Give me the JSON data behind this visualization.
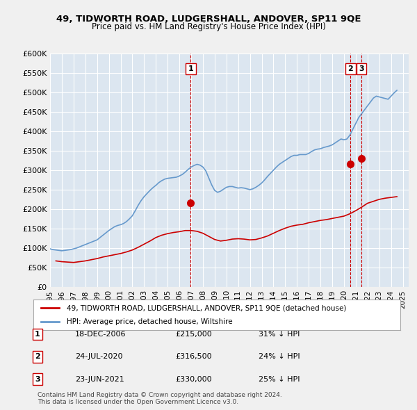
{
  "title": "49, TIDWORTH ROAD, LUDGERSHALL, ANDOVER, SP11 9QE",
  "subtitle": "Price paid vs. HM Land Registry's House Price Index (HPI)",
  "ylabel_ticks": [
    "£0",
    "£50K",
    "£100K",
    "£150K",
    "£200K",
    "£250K",
    "£300K",
    "£350K",
    "£400K",
    "£450K",
    "£500K",
    "£550K",
    "£600K"
  ],
  "ytick_values": [
    0,
    50000,
    100000,
    150000,
    200000,
    250000,
    300000,
    350000,
    400000,
    450000,
    500000,
    550000,
    600000
  ],
  "xlim_start": 1995.0,
  "xlim_end": 2025.5,
  "ylim_min": 0,
  "ylim_max": 600000,
  "hpi_color": "#6699cc",
  "price_color": "#cc0000",
  "vline_color": "#cc0000",
  "background_color": "#e8eef5",
  "plot_bg_color": "#dce6f0",
  "legend_label_red": "49, TIDWORTH ROAD, LUDGERSHALL, ANDOVER, SP11 9QE (detached house)",
  "legend_label_blue": "HPI: Average price, detached house, Wiltshire",
  "transactions": [
    {
      "num": 1,
      "date": "18-DEC-2006",
      "price": 215000,
      "year": 2006.96,
      "pct": "31% ↓ HPI"
    },
    {
      "num": 2,
      "date": "24-JUL-2020",
      "price": 316500,
      "year": 2020.56,
      "pct": "24% ↓ HPI"
    },
    {
      "num": 3,
      "date": "23-JUN-2021",
      "price": 330000,
      "year": 2021.47,
      "pct": "25% ↓ HPI"
    }
  ],
  "footer": "Contains HM Land Registry data © Crown copyright and database right 2024.\nThis data is licensed under the Open Government Licence v3.0.",
  "hpi_data_x": [
    1995.0,
    1995.25,
    1995.5,
    1995.75,
    1996.0,
    1996.25,
    1996.5,
    1996.75,
    1997.0,
    1997.25,
    1997.5,
    1997.75,
    1998.0,
    1998.25,
    1998.5,
    1998.75,
    1999.0,
    1999.25,
    1999.5,
    1999.75,
    2000.0,
    2000.25,
    2000.5,
    2000.75,
    2001.0,
    2001.25,
    2001.5,
    2001.75,
    2002.0,
    2002.25,
    2002.5,
    2002.75,
    2003.0,
    2003.25,
    2003.5,
    2003.75,
    2004.0,
    2004.25,
    2004.5,
    2004.75,
    2005.0,
    2005.25,
    2005.5,
    2005.75,
    2006.0,
    2006.25,
    2006.5,
    2006.75,
    2007.0,
    2007.25,
    2007.5,
    2007.75,
    2008.0,
    2008.25,
    2008.5,
    2008.75,
    2009.0,
    2009.25,
    2009.5,
    2009.75,
    2010.0,
    2010.25,
    2010.5,
    2010.75,
    2011.0,
    2011.25,
    2011.5,
    2011.75,
    2012.0,
    2012.25,
    2012.5,
    2012.75,
    2013.0,
    2013.25,
    2013.5,
    2013.75,
    2014.0,
    2014.25,
    2014.5,
    2014.75,
    2015.0,
    2015.25,
    2015.5,
    2015.75,
    2016.0,
    2016.25,
    2016.5,
    2016.75,
    2017.0,
    2017.25,
    2017.5,
    2017.75,
    2018.0,
    2018.25,
    2018.5,
    2018.75,
    2019.0,
    2019.25,
    2019.5,
    2019.75,
    2020.0,
    2020.25,
    2020.5,
    2020.75,
    2021.0,
    2021.25,
    2021.5,
    2021.75,
    2022.0,
    2022.25,
    2022.5,
    2022.75,
    2023.0,
    2023.25,
    2023.5,
    2023.75,
    2024.0,
    2024.25,
    2024.5
  ],
  "hpi_data_y": [
    98000,
    96000,
    95000,
    94000,
    93000,
    94000,
    95000,
    96000,
    98000,
    100000,
    103000,
    106000,
    109000,
    112000,
    115000,
    118000,
    121000,
    127000,
    133000,
    139000,
    145000,
    150000,
    155000,
    158000,
    160000,
    163000,
    168000,
    175000,
    183000,
    196000,
    210000,
    222000,
    232000,
    240000,
    248000,
    255000,
    261000,
    268000,
    273000,
    277000,
    279000,
    280000,
    281000,
    282000,
    285000,
    289000,
    295000,
    302000,
    308000,
    312000,
    315000,
    313000,
    308000,
    298000,
    280000,
    262000,
    248000,
    243000,
    246000,
    251000,
    256000,
    258000,
    258000,
    256000,
    254000,
    255000,
    254000,
    252000,
    250000,
    252000,
    256000,
    261000,
    267000,
    275000,
    284000,
    292000,
    300000,
    308000,
    315000,
    320000,
    325000,
    330000,
    335000,
    338000,
    338000,
    340000,
    340000,
    340000,
    343000,
    348000,
    352000,
    354000,
    355000,
    358000,
    360000,
    362000,
    365000,
    370000,
    375000,
    380000,
    378000,
    380000,
    390000,
    405000,
    420000,
    435000,
    445000,
    455000,
    465000,
    475000,
    485000,
    490000,
    488000,
    486000,
    484000,
    482000,
    490000,
    498000,
    505000
  ],
  "price_data_x": [
    1995.5,
    1996.0,
    1996.5,
    1997.0,
    1997.5,
    1998.0,
    1998.5,
    1999.0,
    1999.5,
    2000.0,
    2000.5,
    2001.0,
    2001.5,
    2002.0,
    2002.5,
    2003.0,
    2003.5,
    2004.0,
    2004.5,
    2005.0,
    2005.5,
    2006.0,
    2006.5,
    2007.0,
    2007.5,
    2008.0,
    2008.5,
    2009.0,
    2009.5,
    2010.0,
    2010.5,
    2011.0,
    2011.5,
    2012.0,
    2012.5,
    2013.0,
    2013.5,
    2014.0,
    2014.5,
    2015.0,
    2015.5,
    2016.0,
    2016.5,
    2017.0,
    2017.5,
    2018.0,
    2018.5,
    2019.0,
    2019.5,
    2020.0,
    2020.5,
    2021.0,
    2021.5,
    2022.0,
    2022.5,
    2023.0,
    2023.5,
    2024.0,
    2024.5
  ],
  "price_data_y": [
    67000,
    65000,
    64000,
    63000,
    65000,
    67000,
    70000,
    73000,
    77000,
    80000,
    83000,
    86000,
    90000,
    95000,
    102000,
    110000,
    118000,
    127000,
    133000,
    137000,
    140000,
    142000,
    145000,
    145000,
    143000,
    138000,
    130000,
    122000,
    118000,
    120000,
    123000,
    124000,
    123000,
    121000,
    122000,
    126000,
    131000,
    138000,
    145000,
    151000,
    156000,
    159000,
    161000,
    165000,
    168000,
    171000,
    173000,
    176000,
    179000,
    182000,
    188000,
    196000,
    205000,
    215000,
    220000,
    225000,
    228000,
    230000,
    232000
  ],
  "xtick_years": [
    1995,
    1996,
    1997,
    1998,
    1999,
    2000,
    2001,
    2002,
    2003,
    2004,
    2005,
    2006,
    2007,
    2008,
    2009,
    2010,
    2011,
    2012,
    2013,
    2014,
    2015,
    2016,
    2017,
    2018,
    2019,
    2020,
    2021,
    2022,
    2023,
    2024,
    2025
  ]
}
